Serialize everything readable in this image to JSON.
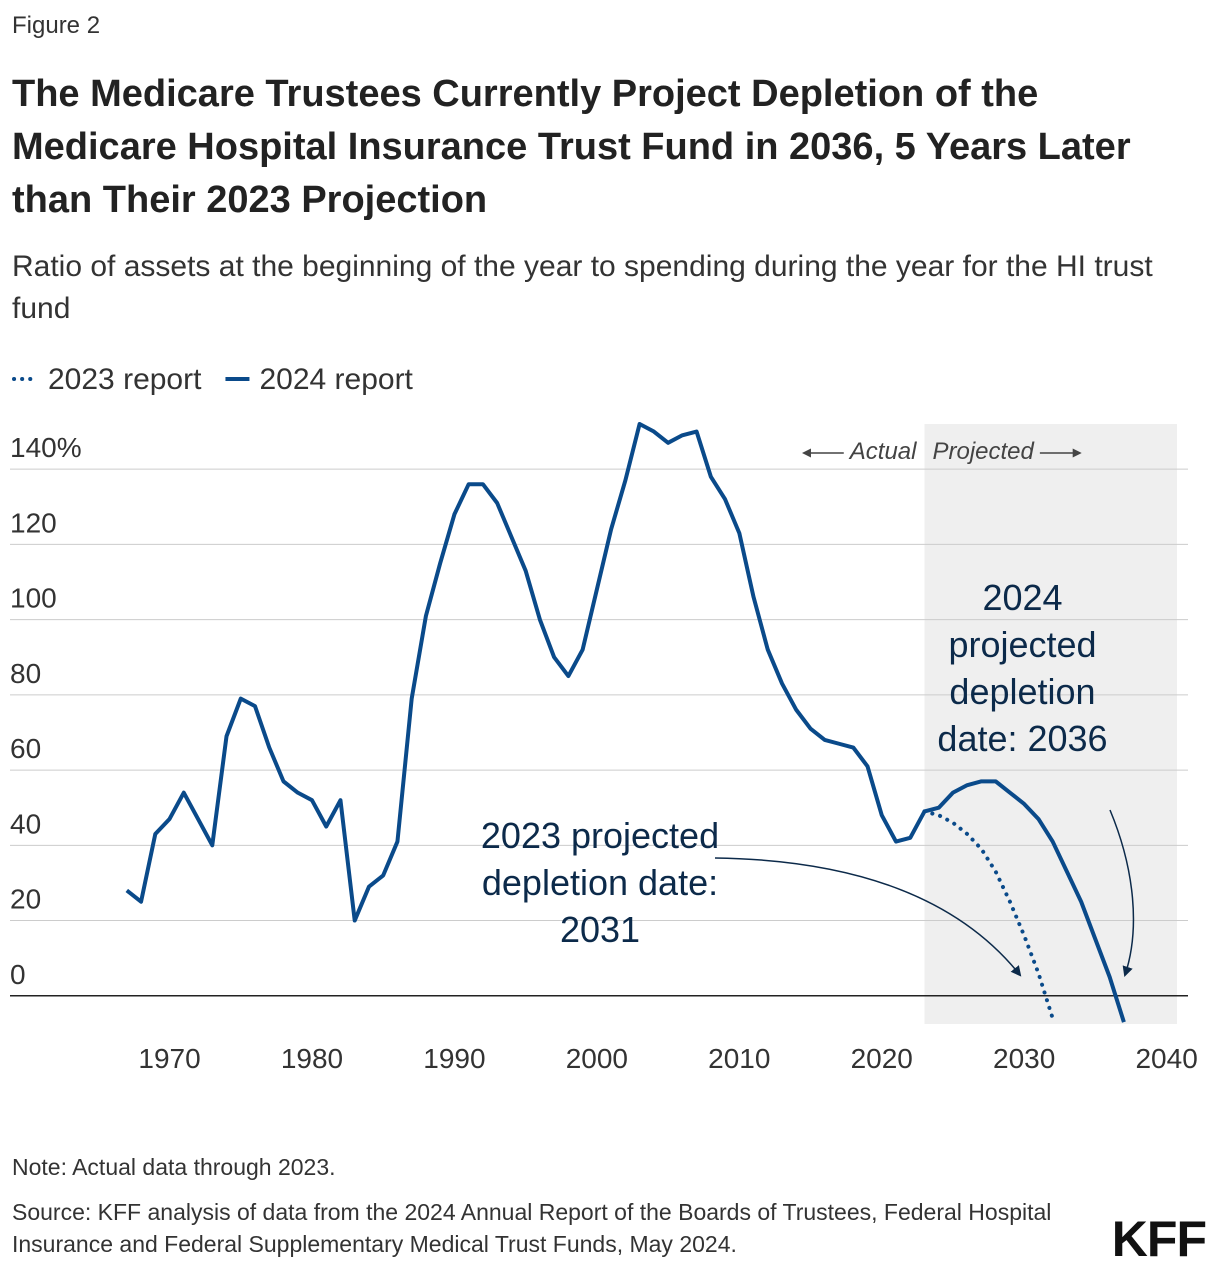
{
  "chart_data": {
    "type": "line",
    "figure_label": "Figure 2",
    "title": "The Medicare Trustees Currently Project Depletion of the Medicare Hospital Insurance Trust Fund in 2036, 5 Years Later than Their 2023 Projection",
    "subtitle": "Ratio of assets at the beginning of the year to spending during the year for the HI trust fund",
    "x": [
      1967,
      1968,
      1969,
      1970,
      1971,
      1972,
      1973,
      1974,
      1975,
      1976,
      1977,
      1978,
      1979,
      1980,
      1981,
      1982,
      1983,
      1984,
      1985,
      1986,
      1987,
      1988,
      1989,
      1990,
      1991,
      1992,
      1993,
      1994,
      1995,
      1996,
      1997,
      1998,
      1999,
      2000,
      2001,
      2002,
      2003,
      2004,
      2005,
      2006,
      2007,
      2008,
      2009,
      2010,
      2011,
      2012,
      2013,
      2014,
      2015,
      2016,
      2017,
      2018,
      2019,
      2020,
      2021,
      2022,
      2023,
      2024,
      2025,
      2026,
      2027,
      2028,
      2029,
      2030,
      2031,
      2032,
      2033,
      2034,
      2035,
      2036,
      2037
    ],
    "series": [
      {
        "name": "2023 report",
        "color": "#0a4a8a",
        "dash": "dotted",
        "values": [
          null,
          null,
          null,
          null,
          null,
          null,
          null,
          null,
          null,
          null,
          null,
          null,
          null,
          null,
          null,
          null,
          null,
          null,
          null,
          null,
          null,
          null,
          null,
          null,
          null,
          null,
          null,
          null,
          null,
          null,
          null,
          null,
          null,
          null,
          null,
          null,
          null,
          null,
          null,
          null,
          null,
          null,
          null,
          null,
          null,
          null,
          null,
          null,
          null,
          null,
          null,
          null,
          null,
          null,
          null,
          null,
          49,
          48,
          46,
          43,
          39,
          33,
          25,
          16,
          6,
          -6,
          null,
          null,
          null,
          null,
          null
        ]
      },
      {
        "name": "2024 report",
        "color": "#0a4a8a",
        "dash": "solid",
        "values": [
          28,
          25,
          43,
          47,
          54,
          47,
          40,
          69,
          79,
          77,
          66,
          57,
          54,
          52,
          45,
          52,
          20,
          29,
          32,
          41,
          79,
          101,
          115,
          128,
          136,
          136,
          131,
          122,
          113,
          100,
          90,
          85,
          92,
          108,
          124,
          137,
          152,
          150,
          147,
          149,
          150,
          138,
          132,
          123,
          106,
          92,
          83,
          76,
          71,
          68,
          67,
          66,
          61,
          48,
          41,
          42,
          49,
          50,
          54,
          56,
          57,
          57,
          54,
          51,
          47,
          41,
          33,
          25,
          15,
          5,
          -7
        ]
      }
    ],
    "xlim": [
      1958.8,
      2041.5
    ],
    "xticks": [
      1970,
      1980,
      1990,
      2000,
      2010,
      2020,
      2030,
      2040
    ],
    "ylim": [
      -7.5,
      152
    ],
    "yticks": [
      0,
      20,
      40,
      60,
      80,
      100,
      120,
      {
        "value": 140,
        "label": "140%"
      }
    ],
    "grid": true,
    "legend": "top-left",
    "projection_start": 2023,
    "period_labels": {
      "actual": "Actual",
      "projected": "Projected"
    },
    "annotations": [
      {
        "text": "2023 projected depletion date: 2031"
      },
      {
        "text": "2024 projected depletion date: 2036"
      }
    ],
    "note": "Note: Actual data through 2023.",
    "source": "Source: KFF analysis of data from the 2024 Annual Report of the Boards of Trustees, Federal Hospital Insurance and Federal Supplementary Medical Trust Funds, May 2024.",
    "logo": "KFF"
  }
}
